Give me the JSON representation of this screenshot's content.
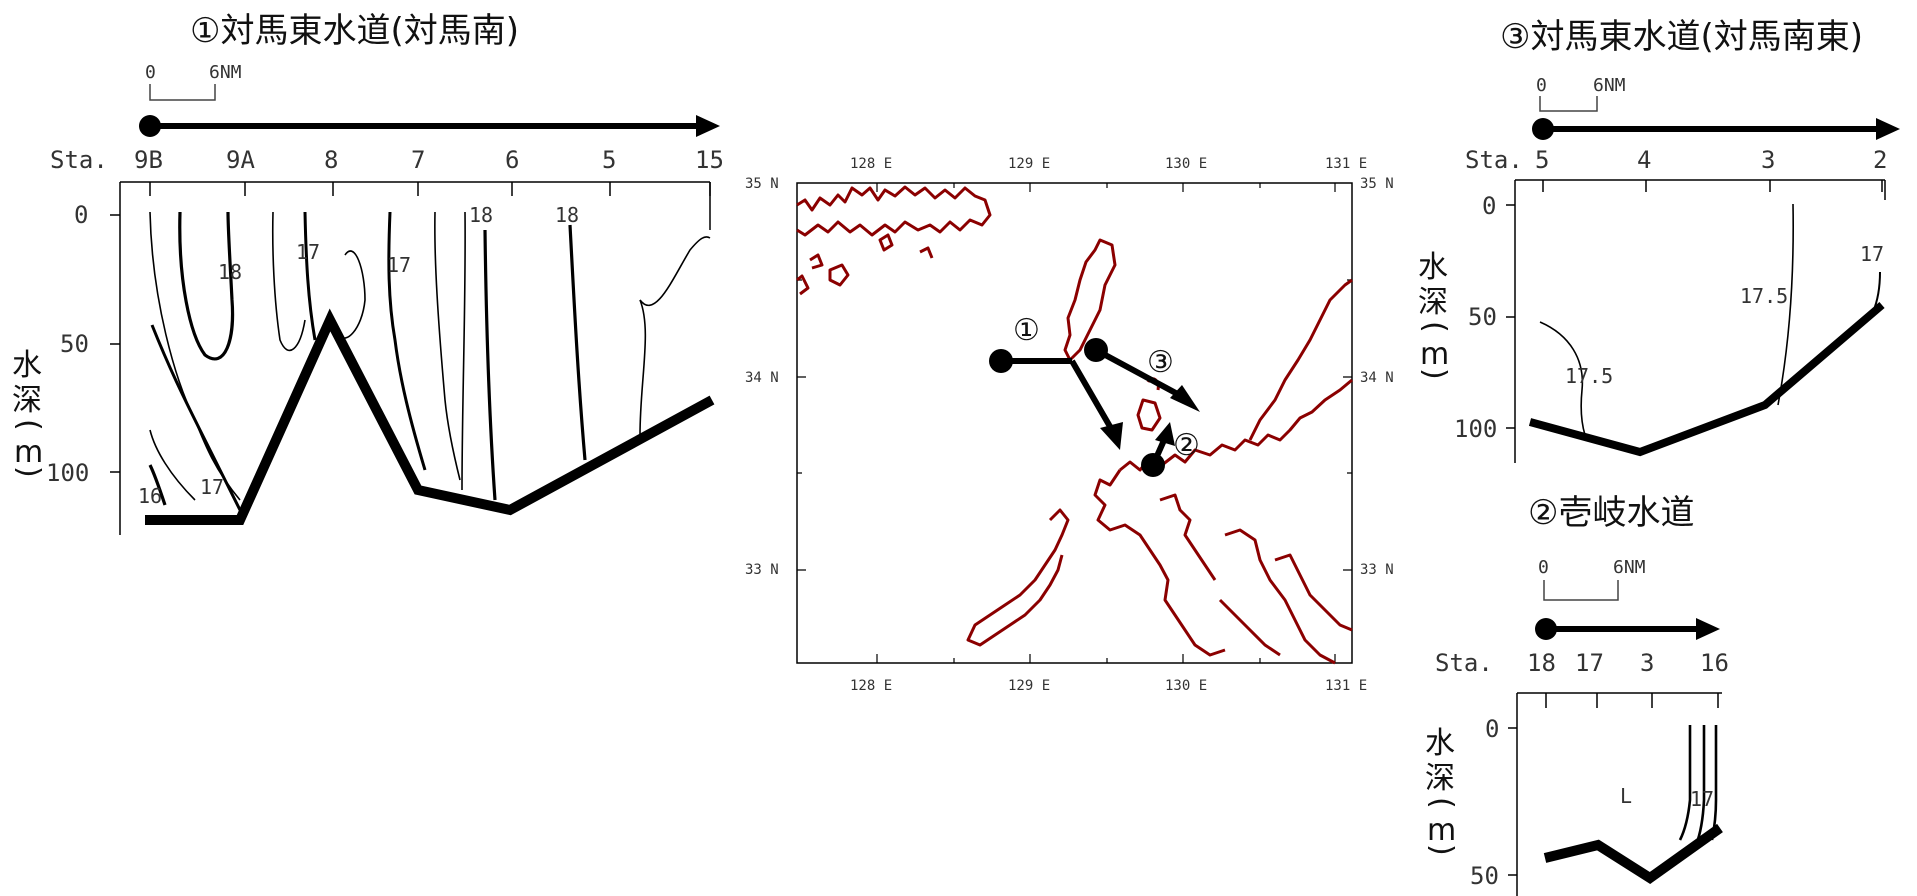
{
  "panel1": {
    "title": "①対馬東水道(対馬南)",
    "scale": {
      "start": "0",
      "end": "6NM"
    },
    "sta_prefix": "Sta.",
    "stations": [
      "9B",
      "9A",
      "8",
      "7",
      "6",
      "5",
      "15"
    ],
    "depth_ticks": [
      "0",
      "50",
      "100"
    ],
    "depth_label_chars": [
      "水",
      "深",
      "(",
      "m",
      ")"
    ],
    "contour_labels": [
      "18",
      "17",
      "17",
      "18",
      "18",
      "16",
      "17"
    ]
  },
  "panel3": {
    "title": "③対馬東水道(対馬南東)",
    "scale": {
      "start": "0",
      "end": "6NM"
    },
    "sta_prefix": "Sta.",
    "stations": [
      "5",
      "4",
      "3",
      "2"
    ],
    "depth_ticks": [
      "0",
      "50",
      "100"
    ],
    "depth_label_chars": [
      "水",
      "深",
      "(",
      "m",
      ")"
    ],
    "contour_labels": [
      "17",
      "17.5",
      "17.5"
    ]
  },
  "panel2": {
    "title": "②壱岐水道",
    "scale": {
      "start": "0",
      "end": "6NM"
    },
    "sta_prefix": "Sta.",
    "stations": [
      "18",
      "17",
      "3",
      "16"
    ],
    "depth_ticks": [
      "0",
      "50"
    ],
    "depth_label_chars": [
      "水",
      "深",
      "(",
      "m",
      ")"
    ],
    "contour_labels": [
      "L",
      "17"
    ]
  },
  "map": {
    "lon_labels": [
      "128 E",
      "129 E",
      "130 E",
      "131 E"
    ],
    "lat_labels": [
      "35 N",
      "34 N",
      "33 N"
    ],
    "route_markers": [
      "①",
      "②",
      "③"
    ],
    "coast_color": "#8b0000"
  }
}
